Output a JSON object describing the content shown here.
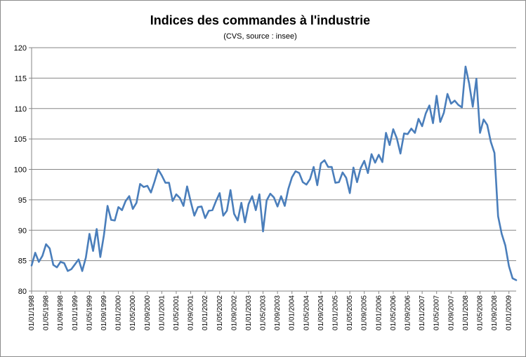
{
  "chart_data": {
    "type": "line",
    "title": "Indices des commandes  à l'industrie",
    "subtitle": "(CVS, source : insee)",
    "xlabel": "",
    "ylabel": "",
    "ylim": [
      80,
      120
    ],
    "yticks": [
      80,
      85,
      90,
      95,
      100,
      105,
      110,
      115,
      120
    ],
    "grid": "horizontal",
    "legend": "none",
    "line_color": "#4a7ebb",
    "x_start": "01/01/1998",
    "x_end": "01/03/2009",
    "xtick_labels": [
      "01/01/1998",
      "01/05/1998",
      "01/09/1998",
      "01/01/1999",
      "01/05/1999",
      "01/09/1999",
      "01/01/2000",
      "01/05/2000",
      "01/09/2000",
      "01/01/2001",
      "01/05/2001",
      "01/09/2001",
      "01/01/2002",
      "01/05/2002",
      "01/09/2002",
      "01/01/2003",
      "01/05/2003",
      "01/09/2003",
      "01/01/2004",
      "01/05/2004",
      "01/09/2004",
      "01/01/2005",
      "01/05/2005",
      "01/09/2005",
      "01/01/2006",
      "01/05/2006",
      "01/09/2006",
      "01/01/2007",
      "01/05/2007",
      "01/09/2007",
      "01/01/2008",
      "01/05/2008",
      "01/09/2008",
      "01/01/2009"
    ],
    "series": [
      {
        "name": "",
        "values": [
          84.2,
          86.3,
          84.8,
          85.8,
          87.7,
          87.0,
          84.3,
          83.9,
          84.8,
          84.6,
          83.3,
          83.6,
          84.4,
          85.2,
          83.3,
          85.5,
          89.4,
          86.6,
          90.2,
          85.6,
          89.2,
          94.0,
          91.7,
          91.6,
          93.8,
          93.3,
          94.8,
          95.6,
          93.5,
          94.5,
          97.6,
          97.1,
          97.3,
          96.2,
          98.0,
          100.0,
          99.0,
          97.8,
          97.8,
          94.8,
          95.9,
          95.3,
          94.0,
          97.2,
          94.7,
          92.4,
          93.8,
          93.9,
          92.0,
          93.2,
          93.3,
          94.8,
          96.1,
          92.4,
          93.2,
          96.6,
          92.7,
          91.6,
          94.5,
          91.3,
          94.3,
          95.6,
          93.3,
          95.9,
          89.8,
          94.9,
          96.0,
          95.4,
          93.9,
          95.6,
          94.0,
          96.8,
          98.7,
          99.7,
          99.4,
          97.9,
          97.5,
          98.4,
          100.4,
          97.4,
          101.0,
          101.5,
          100.4,
          100.4,
          97.8,
          97.9,
          99.5,
          98.6,
          96.1,
          100.3,
          97.9,
          100.2,
          101.4,
          99.4,
          102.5,
          101.1,
          102.4,
          101.2,
          106.0,
          104.0,
          106.6,
          105.1,
          102.6,
          105.9,
          105.8,
          106.7,
          106.0,
          108.3,
          107.1,
          109.2,
          110.5,
          107.6,
          112.1,
          107.8,
          109.3,
          112.4,
          110.8,
          111.3,
          110.6,
          110.2,
          116.9,
          114.1,
          110.3,
          114.9,
          106.0,
          108.2,
          107.3,
          104.5,
          102.7,
          92.3,
          89.4,
          87.5,
          84.1,
          82.1,
          81.8
        ]
      }
    ]
  }
}
